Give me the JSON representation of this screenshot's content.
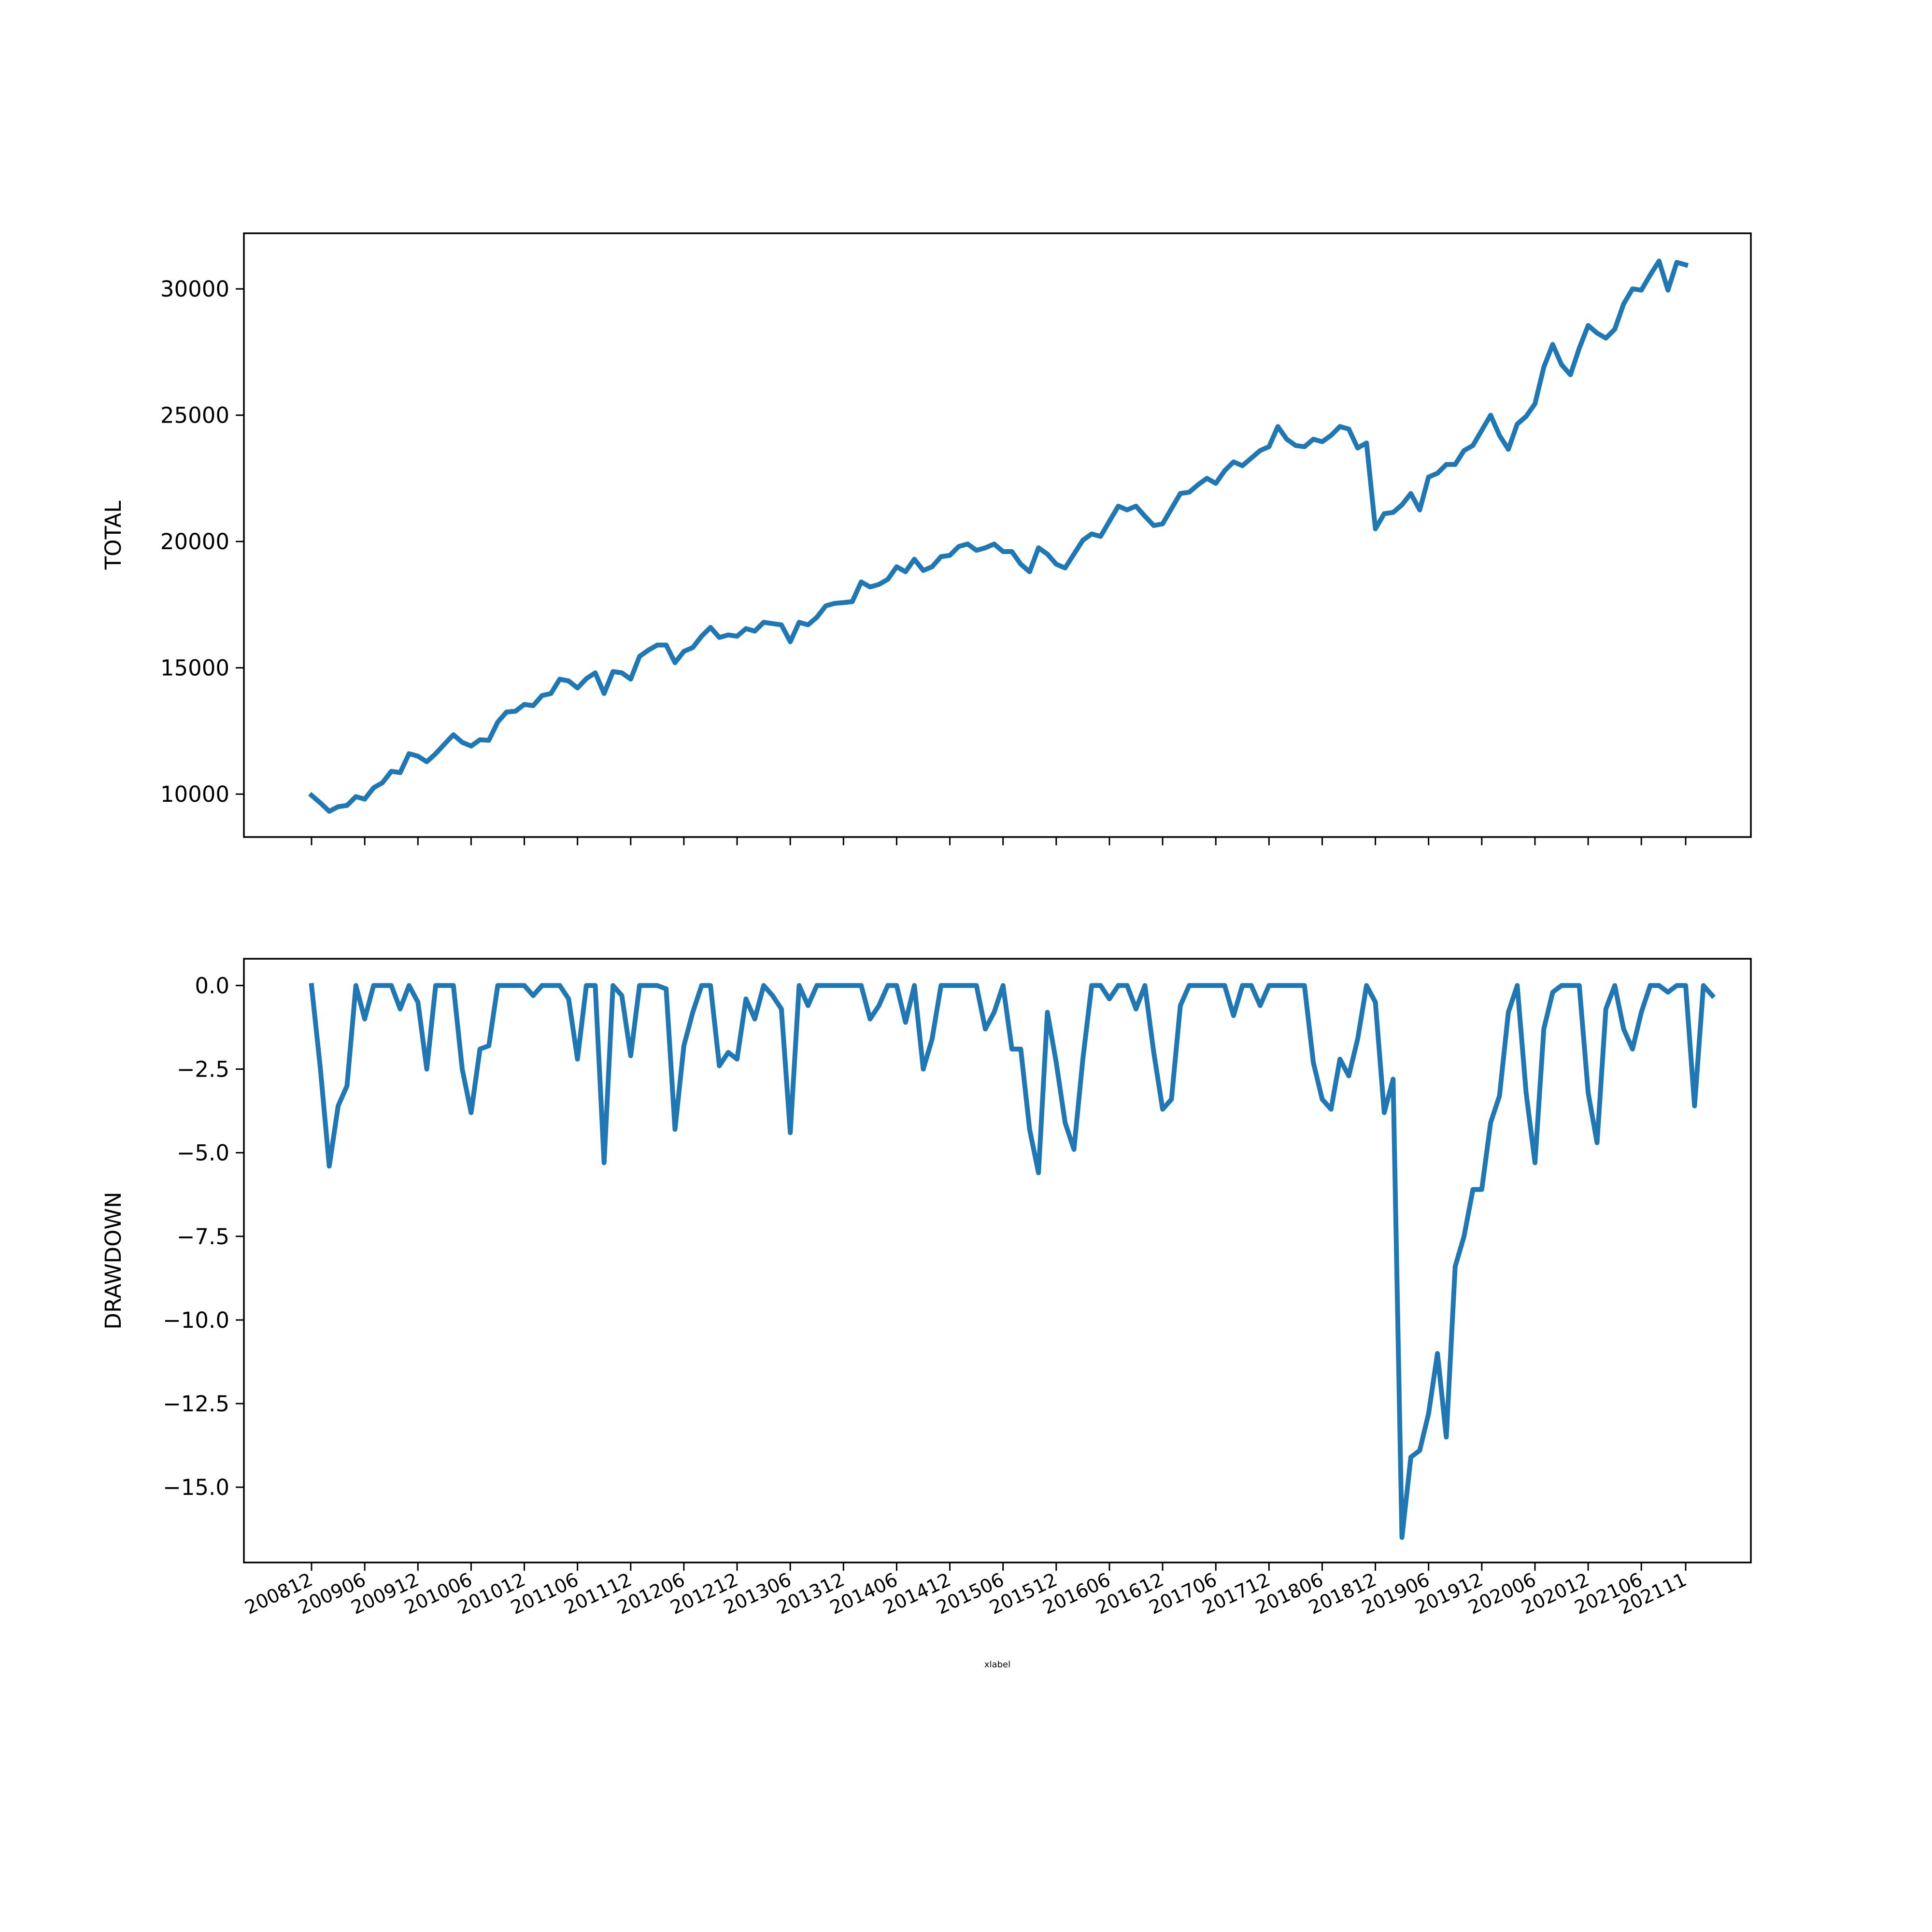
{
  "colors": {
    "series": "#1f77b4",
    "axes": "#000000",
    "background": "#ffffff"
  },
  "chart_data": [
    {
      "type": "line",
      "title": "",
      "xlabel": "",
      "ylabel": "TOTAL",
      "x_axis": "shared monthly index, 0 = 200812, 155 = 202111",
      "ylim": [
        8300,
        32200
      ],
      "yticks": [
        10000,
        15000,
        20000,
        25000,
        30000
      ],
      "ytick_labels": [
        "10000",
        "15000",
        "20000",
        "25000",
        "30000"
      ],
      "grid": false,
      "series": [
        {
          "values": [
            9950,
            9650,
            9320,
            9500,
            9550,
            9900,
            9800,
            10250,
            10450,
            10900,
            10850,
            11600,
            11500,
            11280,
            11600,
            11980,
            12350,
            12050,
            11900,
            12150,
            12130,
            12850,
            13250,
            13280,
            13550,
            13500,
            13900,
            13980,
            14550,
            14480,
            14200,
            14570,
            14800,
            13980,
            14850,
            14800,
            14550,
            15450,
            15700,
            15900,
            15900,
            15200,
            15650,
            15800,
            16250,
            16600,
            16200,
            16300,
            16250,
            16550,
            16450,
            16800,
            16750,
            16700,
            16030,
            16800,
            16700,
            17000,
            17450,
            17550,
            17580,
            17620,
            18400,
            18200,
            18300,
            18500,
            19000,
            18800,
            19300,
            18850,
            19000,
            19400,
            19450,
            19800,
            19900,
            19650,
            19750,
            19900,
            19600,
            19600,
            19100,
            18800,
            19750,
            19500,
            19100,
            18950,
            19500,
            20050,
            20300,
            20200,
            20800,
            21400,
            21250,
            21400,
            21000,
            20630,
            20700,
            21300,
            21900,
            21950,
            22250,
            22500,
            22300,
            22800,
            23150,
            23000,
            23300,
            23600,
            23750,
            24550,
            24050,
            23800,
            23750,
            24050,
            23950,
            24200,
            24550,
            24450,
            23700,
            23900,
            20500,
            21100,
            21150,
            21450,
            21900,
            21250,
            22550,
            22700,
            23050,
            23050,
            23600,
            23800,
            24400,
            25000,
            24200,
            23650,
            24650,
            24950,
            25450,
            26900,
            27800,
            27000,
            26600,
            27650,
            28550,
            28250,
            28050,
            28400,
            29400,
            30000,
            29950,
            30550,
            31100,
            29950,
            31050,
            30950
          ]
        }
      ]
    },
    {
      "type": "line",
      "title": "",
      "xlabel": "xlabel",
      "ylabel": "DRAWDOWN",
      "ylim": [
        -17.25,
        0.8
      ],
      "yticks": [
        0.0,
        -2.5,
        -5.0,
        -7.5,
        -10.0,
        -12.5,
        -15.0
      ],
      "ytick_labels": [
        "0.0",
        "−2.5",
        "−5.0",
        "−7.5",
        "−10.0",
        "−12.5",
        "−15.0"
      ],
      "grid": false,
      "series": [
        {
          "values": [
            0.0,
            -2.5,
            -5.4,
            -3.6,
            -3.0,
            0.0,
            -1.0,
            0.0,
            0.0,
            0.0,
            -0.7,
            0.0,
            -0.5,
            -2.5,
            0.0,
            0.0,
            0.0,
            -2.5,
            -3.8,
            -1.9,
            -1.8,
            0.0,
            0.0,
            0.0,
            0.0,
            -0.3,
            0.0,
            0.0,
            0.0,
            -0.4,
            -2.2,
            0.0,
            0.0,
            -5.3,
            0.0,
            -0.3,
            -2.1,
            0.0,
            0.0,
            0.0,
            -0.1,
            -4.3,
            -1.8,
            -0.8,
            0.0,
            0.0,
            -2.4,
            -2.0,
            -2.2,
            -0.4,
            -1.0,
            0.0,
            -0.3,
            -0.7,
            -4.4,
            0.0,
            -0.6,
            0.0,
            0.0,
            0.0,
            0.0,
            0.0,
            0.0,
            -1.0,
            -0.6,
            0.0,
            0.0,
            -1.1,
            0.0,
            -2.5,
            -1.6,
            0.0,
            0.0,
            0.0,
            0.0,
            0.0,
            -1.3,
            -0.8,
            0.0,
            -1.9,
            -1.9,
            -4.3,
            -5.6,
            -0.8,
            -2.3,
            -4.1,
            -4.9,
            -2.2,
            0.0,
            0.0,
            -0.4,
            0.0,
            0.0,
            -0.7,
            0.0,
            -2.0,
            -3.7,
            -3.4,
            -0.6,
            0.0,
            0.0,
            0.0,
            0.0,
            0.0,
            -0.9,
            0.0,
            0.0,
            -0.6,
            0.0,
            0.0,
            0.0,
            0.0,
            0.0,
            -2.3,
            -3.4,
            -3.7,
            -2.2,
            -2.7,
            -1.6,
            0.0,
            -0.5,
            -3.8,
            -2.8,
            -16.5,
            -14.1,
            -13.9,
            -12.8,
            -11.0,
            -13.5,
            -8.4,
            -7.5,
            -6.1,
            -6.1,
            -4.1,
            -3.3,
            -0.8,
            0.0,
            -3.2,
            -5.3,
            -1.3,
            -0.2,
            0.0,
            0.0,
            0.0,
            -3.2,
            -4.7,
            -0.7,
            0.0,
            -1.3,
            -1.9,
            -0.8,
            0.0,
            0.0,
            -0.2,
            0.0,
            0.0,
            -3.6,
            0.0,
            -0.3
          ]
        }
      ],
      "xtick_index": [
        0,
        6,
        12,
        18,
        24,
        30,
        36,
        42,
        48,
        54,
        60,
        66,
        72,
        78,
        84,
        90,
        96,
        102,
        108,
        114,
        120,
        126,
        132,
        138,
        144,
        150,
        155
      ],
      "xtick_labels": [
        "200812",
        "200906",
        "200912",
        "201006",
        "201012",
        "201106",
        "201112",
        "201206",
        "201212",
        "201306",
        "201312",
        "201406",
        "201412",
        "201506",
        "201512",
        "201606",
        "201612",
        "201706",
        "201712",
        "201806",
        "201812",
        "201906",
        "201912",
        "202006",
        "202012",
        "202106",
        "202111"
      ]
    }
  ]
}
